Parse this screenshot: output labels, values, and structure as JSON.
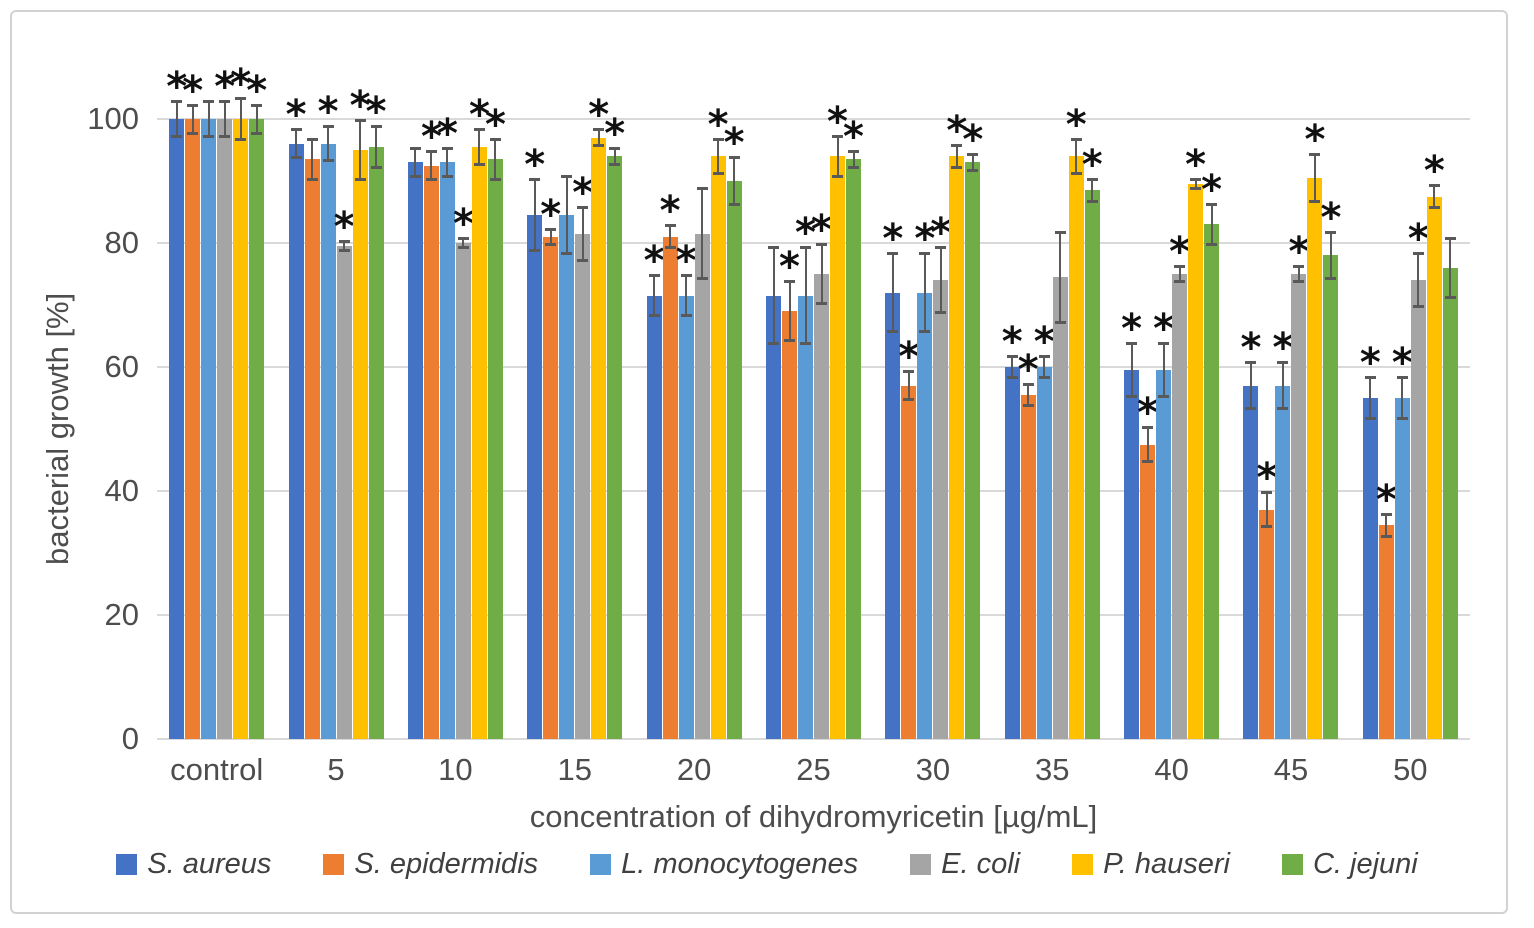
{
  "figure": {
    "background": "#ffffff",
    "border_color": "#d2d2d2"
  },
  "chart_data": {
    "type": "bar",
    "title": "",
    "xlabel": "concentration of dihydromyricetin [µg/mL]",
    "ylabel": "bacterial growth [%]",
    "ylim": [
      0,
      100
    ],
    "yticks": [
      0,
      20,
      40,
      60,
      80,
      100
    ],
    "grid": true,
    "legend_position": "bottom",
    "significance_marker": "*",
    "categories": [
      "control",
      "5",
      "10",
      "15",
      "20",
      "25",
      "30",
      "35",
      "40",
      "45",
      "50"
    ],
    "series": [
      {
        "name": "S. aureus",
        "color": "#4472C4",
        "values": [
          100,
          96,
          93,
          84.5,
          71.5,
          71.5,
          72,
          60,
          59.5,
          57,
          55
        ],
        "errors": [
          3,
          2.5,
          2.5,
          6,
          3.5,
          8,
          6.5,
          2,
          4.5,
          4,
          3.5
        ],
        "significant": [
          true,
          true,
          false,
          true,
          true,
          false,
          true,
          true,
          true,
          true,
          true
        ]
      },
      {
        "name": "S. epidermidis",
        "color": "#ED7D31",
        "values": [
          100,
          93.5,
          92.5,
          81,
          81,
          69,
          57,
          55.5,
          47.5,
          37,
          34.5
        ],
        "errors": [
          2.5,
          3.5,
          2.5,
          1.5,
          2,
          5,
          2.5,
          2,
          3,
          3,
          2
        ],
        "significant": [
          true,
          false,
          true,
          true,
          true,
          true,
          true,
          true,
          true,
          true,
          true
        ]
      },
      {
        "name": "L. monocytogenes",
        "color": "#5B9BD5",
        "values": [
          100,
          96,
          93,
          84.5,
          71.5,
          71.5,
          72,
          60,
          59.5,
          57,
          55
        ],
        "errors": [
          3,
          3,
          2.5,
          6.5,
          3.5,
          8,
          6.5,
          2,
          4.5,
          4,
          3.5
        ],
        "significant": [
          false,
          true,
          true,
          false,
          true,
          true,
          true,
          true,
          true,
          true,
          true
        ]
      },
      {
        "name": "E. coli",
        "color": "#A5A5A5",
        "values": [
          100,
          79.5,
          80,
          81.5,
          81.5,
          75,
          74,
          74.5,
          75,
          75,
          74
        ],
        "errors": [
          3,
          1,
          1,
          4.5,
          7.5,
          5,
          5.5,
          7.5,
          1.5,
          1.5,
          4.5
        ],
        "significant": [
          true,
          true,
          true,
          true,
          false,
          true,
          true,
          false,
          true,
          true,
          true
        ]
      },
      {
        "name": "P. hauseri",
        "color": "#FFC000",
        "values": [
          100,
          95,
          95.5,
          97,
          94,
          94,
          94,
          94,
          89.5,
          90.5,
          87.5
        ],
        "errors": [
          3.5,
          5,
          3,
          1.5,
          3,
          3.5,
          2,
          3,
          1,
          4,
          2
        ],
        "significant": [
          true,
          true,
          true,
          true,
          true,
          true,
          true,
          true,
          true,
          true,
          true
        ]
      },
      {
        "name": "C. jejuni",
        "color": "#70AD47",
        "values": [
          100,
          95.5,
          93.5,
          94,
          90,
          93.5,
          93,
          88.5,
          83,
          78,
          76
        ],
        "errors": [
          2.5,
          3.5,
          3.5,
          1.5,
          4,
          1.5,
          1.5,
          2,
          3.5,
          4,
          5
        ],
        "significant": [
          true,
          true,
          true,
          true,
          true,
          true,
          true,
          true,
          true,
          true,
          false
        ]
      }
    ],
    "style": {
      "gridline_color": "#d9d9d9",
      "error_bar_color": "#595959",
      "text_color": "#4d4d4d",
      "marker_color": "#111111"
    }
  }
}
